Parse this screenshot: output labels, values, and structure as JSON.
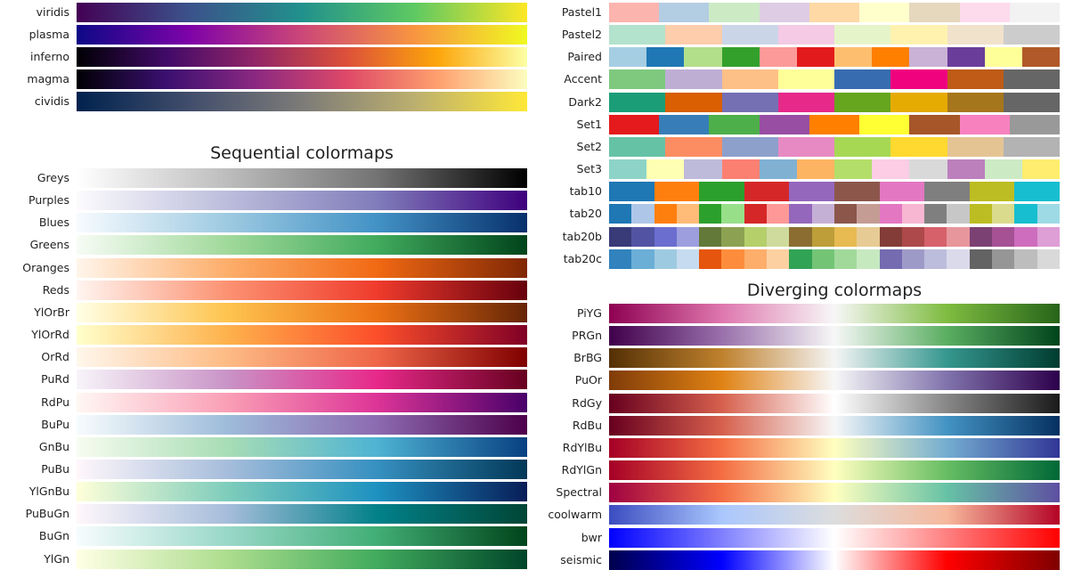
{
  "sections": {
    "perceptual": {
      "maps": [
        {
          "name": "viridis",
          "colors": [
            "#440154",
            "#3b528b",
            "#21918c",
            "#5ec962",
            "#fde725"
          ]
        },
        {
          "name": "plasma",
          "colors": [
            "#0d0887",
            "#7e03a8",
            "#cc4778",
            "#f89540",
            "#f0f921"
          ]
        },
        {
          "name": "inferno",
          "colors": [
            "#000004",
            "#420a68",
            "#932667",
            "#dd513a",
            "#fca50a",
            "#fcffa4"
          ]
        },
        {
          "name": "magma",
          "colors": [
            "#000004",
            "#3b0f70",
            "#8c2981",
            "#de4968",
            "#fe9f6d",
            "#fcfdbf"
          ]
        },
        {
          "name": "cividis",
          "colors": [
            "#00224e",
            "#414d6b",
            "#7c7b78",
            "#bcaf6f",
            "#fee838"
          ]
        }
      ]
    },
    "sequential": {
      "title": "Sequential colormaps",
      "maps": [
        {
          "name": "Greys",
          "colors": [
            "#ffffff",
            "#bdbdbd",
            "#737373",
            "#000000"
          ]
        },
        {
          "name": "Purples",
          "colors": [
            "#fcfbfd",
            "#bcbddc",
            "#807dba",
            "#3f007d"
          ]
        },
        {
          "name": "Blues",
          "colors": [
            "#f7fbff",
            "#9ecae1",
            "#4292c6",
            "#08306b"
          ]
        },
        {
          "name": "Greens",
          "colors": [
            "#f7fcf5",
            "#a1d99b",
            "#41ab5d",
            "#00441b"
          ]
        },
        {
          "name": "Oranges",
          "colors": [
            "#fff5eb",
            "#fdae6b",
            "#f16913",
            "#7f2704"
          ]
        },
        {
          "name": "Reds",
          "colors": [
            "#fff5f0",
            "#fc9272",
            "#ef3b2c",
            "#67000d"
          ]
        },
        {
          "name": "YlOrBr",
          "colors": [
            "#ffffe5",
            "#fec44f",
            "#ec7014",
            "#662506"
          ]
        },
        {
          "name": "YlOrRd",
          "colors": [
            "#ffffcc",
            "#feb24c",
            "#fc4e2a",
            "#800026"
          ]
        },
        {
          "name": "OrRd",
          "colors": [
            "#fff7ec",
            "#fdbb84",
            "#ef6548",
            "#7f0000"
          ]
        },
        {
          "name": "PuRd",
          "colors": [
            "#f7f4f9",
            "#c994c7",
            "#e7298a",
            "#67001f"
          ]
        },
        {
          "name": "RdPu",
          "colors": [
            "#fff7f3",
            "#fa9fb5",
            "#dd3497",
            "#49006a"
          ]
        },
        {
          "name": "BuPu",
          "colors": [
            "#f7fcfd",
            "#9ebcda",
            "#8c6bb1",
            "#4d004b"
          ]
        },
        {
          "name": "GnBu",
          "colors": [
            "#f7fcf0",
            "#a8ddb5",
            "#4eb3d3",
            "#084081"
          ]
        },
        {
          "name": "PuBu",
          "colors": [
            "#fff7fb",
            "#a6bddb",
            "#3690c0",
            "#023858"
          ]
        },
        {
          "name": "YlGnBu",
          "colors": [
            "#ffffd9",
            "#7fcdbb",
            "#1d91c0",
            "#081d58"
          ]
        },
        {
          "name": "PuBuGn",
          "colors": [
            "#fff7fb",
            "#a6bddb",
            "#02818a",
            "#014636"
          ]
        },
        {
          "name": "BuGn",
          "colors": [
            "#f7fcfd",
            "#99d8c9",
            "#41ae76",
            "#00441b"
          ]
        },
        {
          "name": "YlGn",
          "colors": [
            "#ffffe5",
            "#addd8e",
            "#41ab5d",
            "#004529"
          ]
        }
      ]
    },
    "qualitative": {
      "maps": [
        {
          "name": "Pastel1",
          "colors": [
            "#fbb4ae",
            "#b3cde3",
            "#ccebc5",
            "#decbe4",
            "#fed9a6",
            "#ffffcc",
            "#e5d8bd",
            "#fddaec",
            "#f2f2f2"
          ]
        },
        {
          "name": "Pastel2",
          "colors": [
            "#b3e2cd",
            "#fdcdac",
            "#cbd5e8",
            "#f4cae4",
            "#e6f5c9",
            "#fff2ae",
            "#f1e2cc",
            "#cccccc"
          ]
        },
        {
          "name": "Paired",
          "colors": [
            "#a6cee3",
            "#1f78b4",
            "#b2df8a",
            "#33a02c",
            "#fb9a99",
            "#e31a1c",
            "#fdbf6f",
            "#ff7f00",
            "#cab2d6",
            "#6a3d9a",
            "#ffff99",
            "#b15928"
          ]
        },
        {
          "name": "Accent",
          "colors": [
            "#7fc97f",
            "#beaed4",
            "#fdc086",
            "#ffff99",
            "#386cb0",
            "#f0027f",
            "#bf5b17",
            "#666666"
          ]
        },
        {
          "name": "Dark2",
          "colors": [
            "#1b9e77",
            "#d95f02",
            "#7570b3",
            "#e7298a",
            "#66a61e",
            "#e6ab02",
            "#a6761d",
            "#666666"
          ]
        },
        {
          "name": "Set1",
          "colors": [
            "#e41a1c",
            "#377eb8",
            "#4daf4a",
            "#984ea3",
            "#ff7f00",
            "#ffff33",
            "#a65628",
            "#f781bf",
            "#999999"
          ]
        },
        {
          "name": "Set2",
          "colors": [
            "#66c2a5",
            "#fc8d62",
            "#8da0cb",
            "#e78ac3",
            "#a6d854",
            "#ffd92f",
            "#e5c494",
            "#b3b3b3"
          ]
        },
        {
          "name": "Set3",
          "colors": [
            "#8dd3c7",
            "#ffffb3",
            "#bebada",
            "#fb8072",
            "#80b1d3",
            "#fdb462",
            "#b3de69",
            "#fccde5",
            "#d9d9d9",
            "#bc80bd",
            "#ccebc5",
            "#ffed6f"
          ]
        },
        {
          "name": "tab10",
          "colors": [
            "#1f77b4",
            "#ff7f0e",
            "#2ca02c",
            "#d62728",
            "#9467bd",
            "#8c564b",
            "#e377c2",
            "#7f7f7f",
            "#bcbd22",
            "#17becf"
          ]
        },
        {
          "name": "tab20",
          "colors": [
            "#1f77b4",
            "#aec7e8",
            "#ff7f0e",
            "#ffbb78",
            "#2ca02c",
            "#98df8a",
            "#d62728",
            "#ff9896",
            "#9467bd",
            "#c5b0d5",
            "#8c564b",
            "#c49c94",
            "#e377c2",
            "#f7b6d2",
            "#7f7f7f",
            "#c7c7c7",
            "#bcbd22",
            "#dbdb8d",
            "#17becf",
            "#9edae5"
          ]
        },
        {
          "name": "tab20b",
          "colors": [
            "#393b79",
            "#5254a3",
            "#6b6ecf",
            "#9c9ede",
            "#637939",
            "#8ca252",
            "#b5cf6b",
            "#cedb9c",
            "#8c6d31",
            "#bd9e39",
            "#e7ba52",
            "#e7cb94",
            "#843c39",
            "#ad494a",
            "#d6616b",
            "#e7969c",
            "#7b4173",
            "#a55194",
            "#ce6dbd",
            "#de9ed6"
          ]
        },
        {
          "name": "tab20c",
          "colors": [
            "#3182bd",
            "#6baed6",
            "#9ecae1",
            "#c6dbef",
            "#e6550d",
            "#fd8d3c",
            "#fdae6b",
            "#fdd0a2",
            "#31a354",
            "#74c476",
            "#a1d99b",
            "#c7e9c0",
            "#756bb1",
            "#9e9ac8",
            "#bcbddc",
            "#dadaeb",
            "#636363",
            "#969696",
            "#bdbdbd",
            "#d9d9d9"
          ]
        }
      ]
    },
    "diverging": {
      "title": "Diverging colormaps",
      "maps": [
        {
          "name": "PiYG",
          "colors": [
            "#8e0152",
            "#de77ae",
            "#f7f7f7",
            "#7fbc41",
            "#276419"
          ]
        },
        {
          "name": "PRGn",
          "colors": [
            "#40004b",
            "#9970ab",
            "#f7f7f7",
            "#5aae61",
            "#00441b"
          ]
        },
        {
          "name": "BrBG",
          "colors": [
            "#543005",
            "#bf812d",
            "#f5f5f5",
            "#35978f",
            "#003c30"
          ]
        },
        {
          "name": "PuOr",
          "colors": [
            "#7f3b08",
            "#e08214",
            "#f7f7f7",
            "#8073ac",
            "#2d004b"
          ]
        },
        {
          "name": "RdGy",
          "colors": [
            "#67001f",
            "#d6604d",
            "#ffffff",
            "#878787",
            "#1a1a1a"
          ]
        },
        {
          "name": "RdBu",
          "colors": [
            "#67001f",
            "#d6604d",
            "#f7f7f7",
            "#4393c3",
            "#053061"
          ]
        },
        {
          "name": "RdYlBu",
          "colors": [
            "#a50026",
            "#f46d43",
            "#ffffbf",
            "#74add1",
            "#313695"
          ]
        },
        {
          "name": "RdYlGn",
          "colors": [
            "#a50026",
            "#f46d43",
            "#ffffbf",
            "#66bd63",
            "#006837"
          ]
        },
        {
          "name": "Spectral",
          "colors": [
            "#9e0142",
            "#f46d43",
            "#ffffbf",
            "#66c2a5",
            "#5e4fa2"
          ]
        },
        {
          "name": "coolwarm",
          "colors": [
            "#3b4cc0",
            "#aac7fd",
            "#dddddd",
            "#f7b89c",
            "#b40426"
          ]
        },
        {
          "name": "bwr",
          "colors": [
            "#0000ff",
            "#ffffff",
            "#ff0000"
          ]
        },
        {
          "name": "seismic",
          "colors": [
            "#00004c",
            "#0000ff",
            "#ffffff",
            "#ff0000",
            "#7f0000"
          ]
        }
      ]
    }
  }
}
